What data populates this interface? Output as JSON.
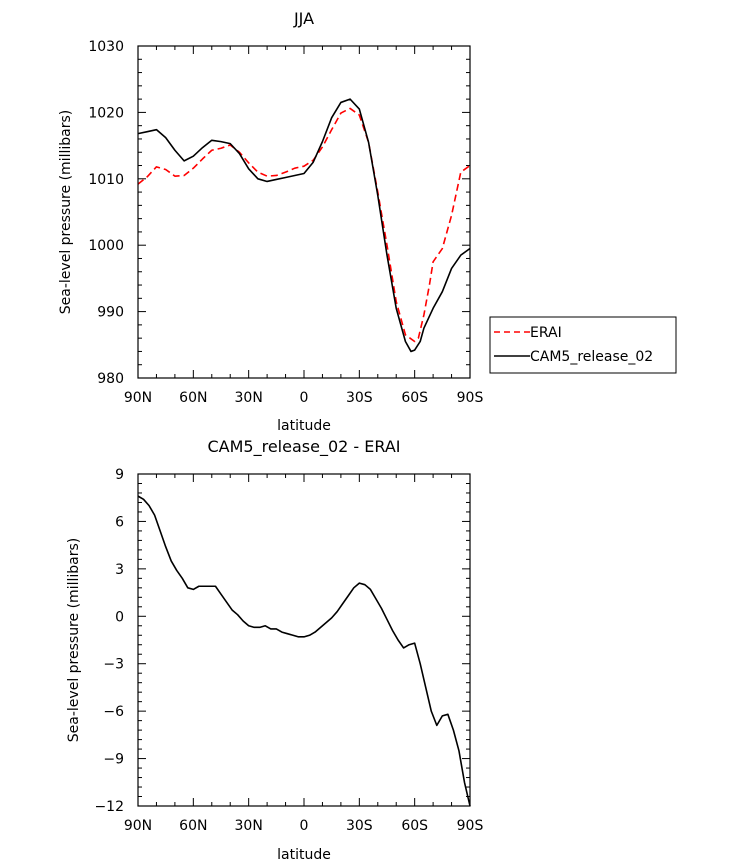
{
  "chart_data": [
    {
      "type": "line",
      "title": "JJA",
      "xlabel": "latitude",
      "ylabel": "Sea-level pressure (millibars)",
      "xlim": [
        -90,
        90
      ],
      "ylim": [
        980,
        1030
      ],
      "x_tick_values": [
        -90,
        -60,
        -30,
        0,
        30,
        60,
        90
      ],
      "x_tick_labels": [
        "90N",
        "60N",
        "30N",
        "0",
        "30S",
        "60S",
        "90S"
      ],
      "y_tick_values": [
        980,
        990,
        1000,
        1010,
        1020,
        1030
      ],
      "y_tick_labels": [
        "980",
        "990",
        "1000",
        "1010",
        "1020",
        "1030"
      ],
      "legend_position": "right",
      "series": [
        {
          "name": "ERAI",
          "color": "#ff0000",
          "dashed": true,
          "x": [
            -90,
            -85,
            -80,
            -75,
            -70,
            -65,
            -60,
            -55,
            -50,
            -45,
            -40,
            -35,
            -30,
            -25,
            -20,
            -15,
            -10,
            -5,
            0,
            5,
            10,
            15,
            20,
            25,
            30,
            35,
            40,
            45,
            50,
            55,
            60,
            62,
            65,
            68,
            70,
            75,
            80,
            85,
            90
          ],
          "y": [
            1009.2,
            1010.3,
            1011.8,
            1011.4,
            1010.4,
            1010.5,
            1011.6,
            1013.0,
            1014.3,
            1014.6,
            1015.1,
            1014.0,
            1012.4,
            1011.0,
            1010.4,
            1010.5,
            1011.0,
            1011.6,
            1011.9,
            1012.8,
            1014.8,
            1017.4,
            1019.9,
            1020.6,
            1019.6,
            1015.5,
            1008.0,
            1000.0,
            991.5,
            986.5,
            985.5,
            986.0,
            989.5,
            994.0,
            997.5,
            999.5,
            1004.5,
            1011.0,
            1012.0
          ]
        },
        {
          "name": "CAM5_release_02",
          "color": "#000000",
          "dashed": false,
          "x": [
            -90,
            -85,
            -80,
            -75,
            -70,
            -65,
            -60,
            -55,
            -50,
            -45,
            -40,
            -35,
            -30,
            -25,
            -20,
            -15,
            -10,
            -5,
            0,
            5,
            10,
            15,
            20,
            25,
            30,
            35,
            40,
            45,
            50,
            55,
            58,
            60,
            63,
            65,
            70,
            75,
            80,
            85,
            90
          ],
          "y": [
            1016.8,
            1017.1,
            1017.4,
            1016.2,
            1014.3,
            1012.7,
            1013.4,
            1014.7,
            1015.8,
            1015.6,
            1015.3,
            1013.8,
            1011.5,
            1010.0,
            1009.6,
            1009.9,
            1010.2,
            1010.5,
            1010.8,
            1012.5,
            1015.6,
            1019.2,
            1021.5,
            1022.0,
            1020.5,
            1015.5,
            1007.5,
            998.5,
            990.5,
            985.5,
            984.0,
            984.2,
            985.5,
            987.5,
            990.5,
            993.0,
            996.5,
            998.5,
            999.5
          ]
        }
      ]
    },
    {
      "type": "line",
      "title": "CAM5_release_02 - ERAI",
      "xlabel": "latitude",
      "ylabel": "Sea-level pressure (millibars)",
      "xlim": [
        -90,
        90
      ],
      "ylim": [
        -12,
        9
      ],
      "x_tick_values": [
        -90,
        -60,
        -30,
        0,
        30,
        60,
        90
      ],
      "x_tick_labels": [
        "90N",
        "60N",
        "30N",
        "0",
        "30S",
        "60S",
        "90S"
      ],
      "y_tick_values": [
        -12,
        -9,
        -6,
        -3,
        0,
        3,
        6,
        9
      ],
      "y_tick_labels": [
        "−12",
        "−9",
        "−6",
        "−3",
        "0",
        "3",
        "6",
        "9"
      ],
      "series": [
        {
          "color": "#000000",
          "dashed": false,
          "x": [
            -90,
            -87,
            -84,
            -81,
            -78,
            -75,
            -72,
            -69,
            -66,
            -63,
            -60,
            -57,
            -54,
            -51,
            -48,
            -45,
            -42,
            -39,
            -36,
            -33,
            -30,
            -27,
            -24,
            -21,
            -18,
            -15,
            -12,
            -9,
            -6,
            -3,
            0,
            3,
            6,
            9,
            12,
            15,
            18,
            21,
            24,
            27,
            30,
            33,
            36,
            39,
            42,
            45,
            48,
            51,
            54,
            57,
            60,
            63,
            66,
            69,
            72,
            75,
            78,
            81,
            84,
            87,
            90
          ],
          "y": [
            7.6,
            7.4,
            7.0,
            6.4,
            5.4,
            4.4,
            3.5,
            2.9,
            2.4,
            1.8,
            1.7,
            1.9,
            1.9,
            1.9,
            1.9,
            1.4,
            0.9,
            0.4,
            0.1,
            -0.3,
            -0.6,
            -0.7,
            -0.7,
            -0.6,
            -0.8,
            -0.8,
            -1.0,
            -1.1,
            -1.2,
            -1.3,
            -1.3,
            -1.2,
            -1.0,
            -0.7,
            -0.4,
            -0.1,
            0.3,
            0.8,
            1.3,
            1.8,
            2.1,
            2.0,
            1.7,
            1.1,
            0.5,
            -0.2,
            -0.9,
            -1.5,
            -2.0,
            -1.8,
            -1.7,
            -3.0,
            -4.5,
            -6.0,
            -6.9,
            -6.3,
            -6.2,
            -7.2,
            -8.5,
            -10.5,
            -12.0
          ]
        }
      ]
    }
  ],
  "legend": {
    "items": [
      {
        "label": "ERAI",
        "color": "#ff0000",
        "dashed": true
      },
      {
        "label": "CAM5_release_02",
        "color": "#000000",
        "dashed": false
      }
    ]
  }
}
